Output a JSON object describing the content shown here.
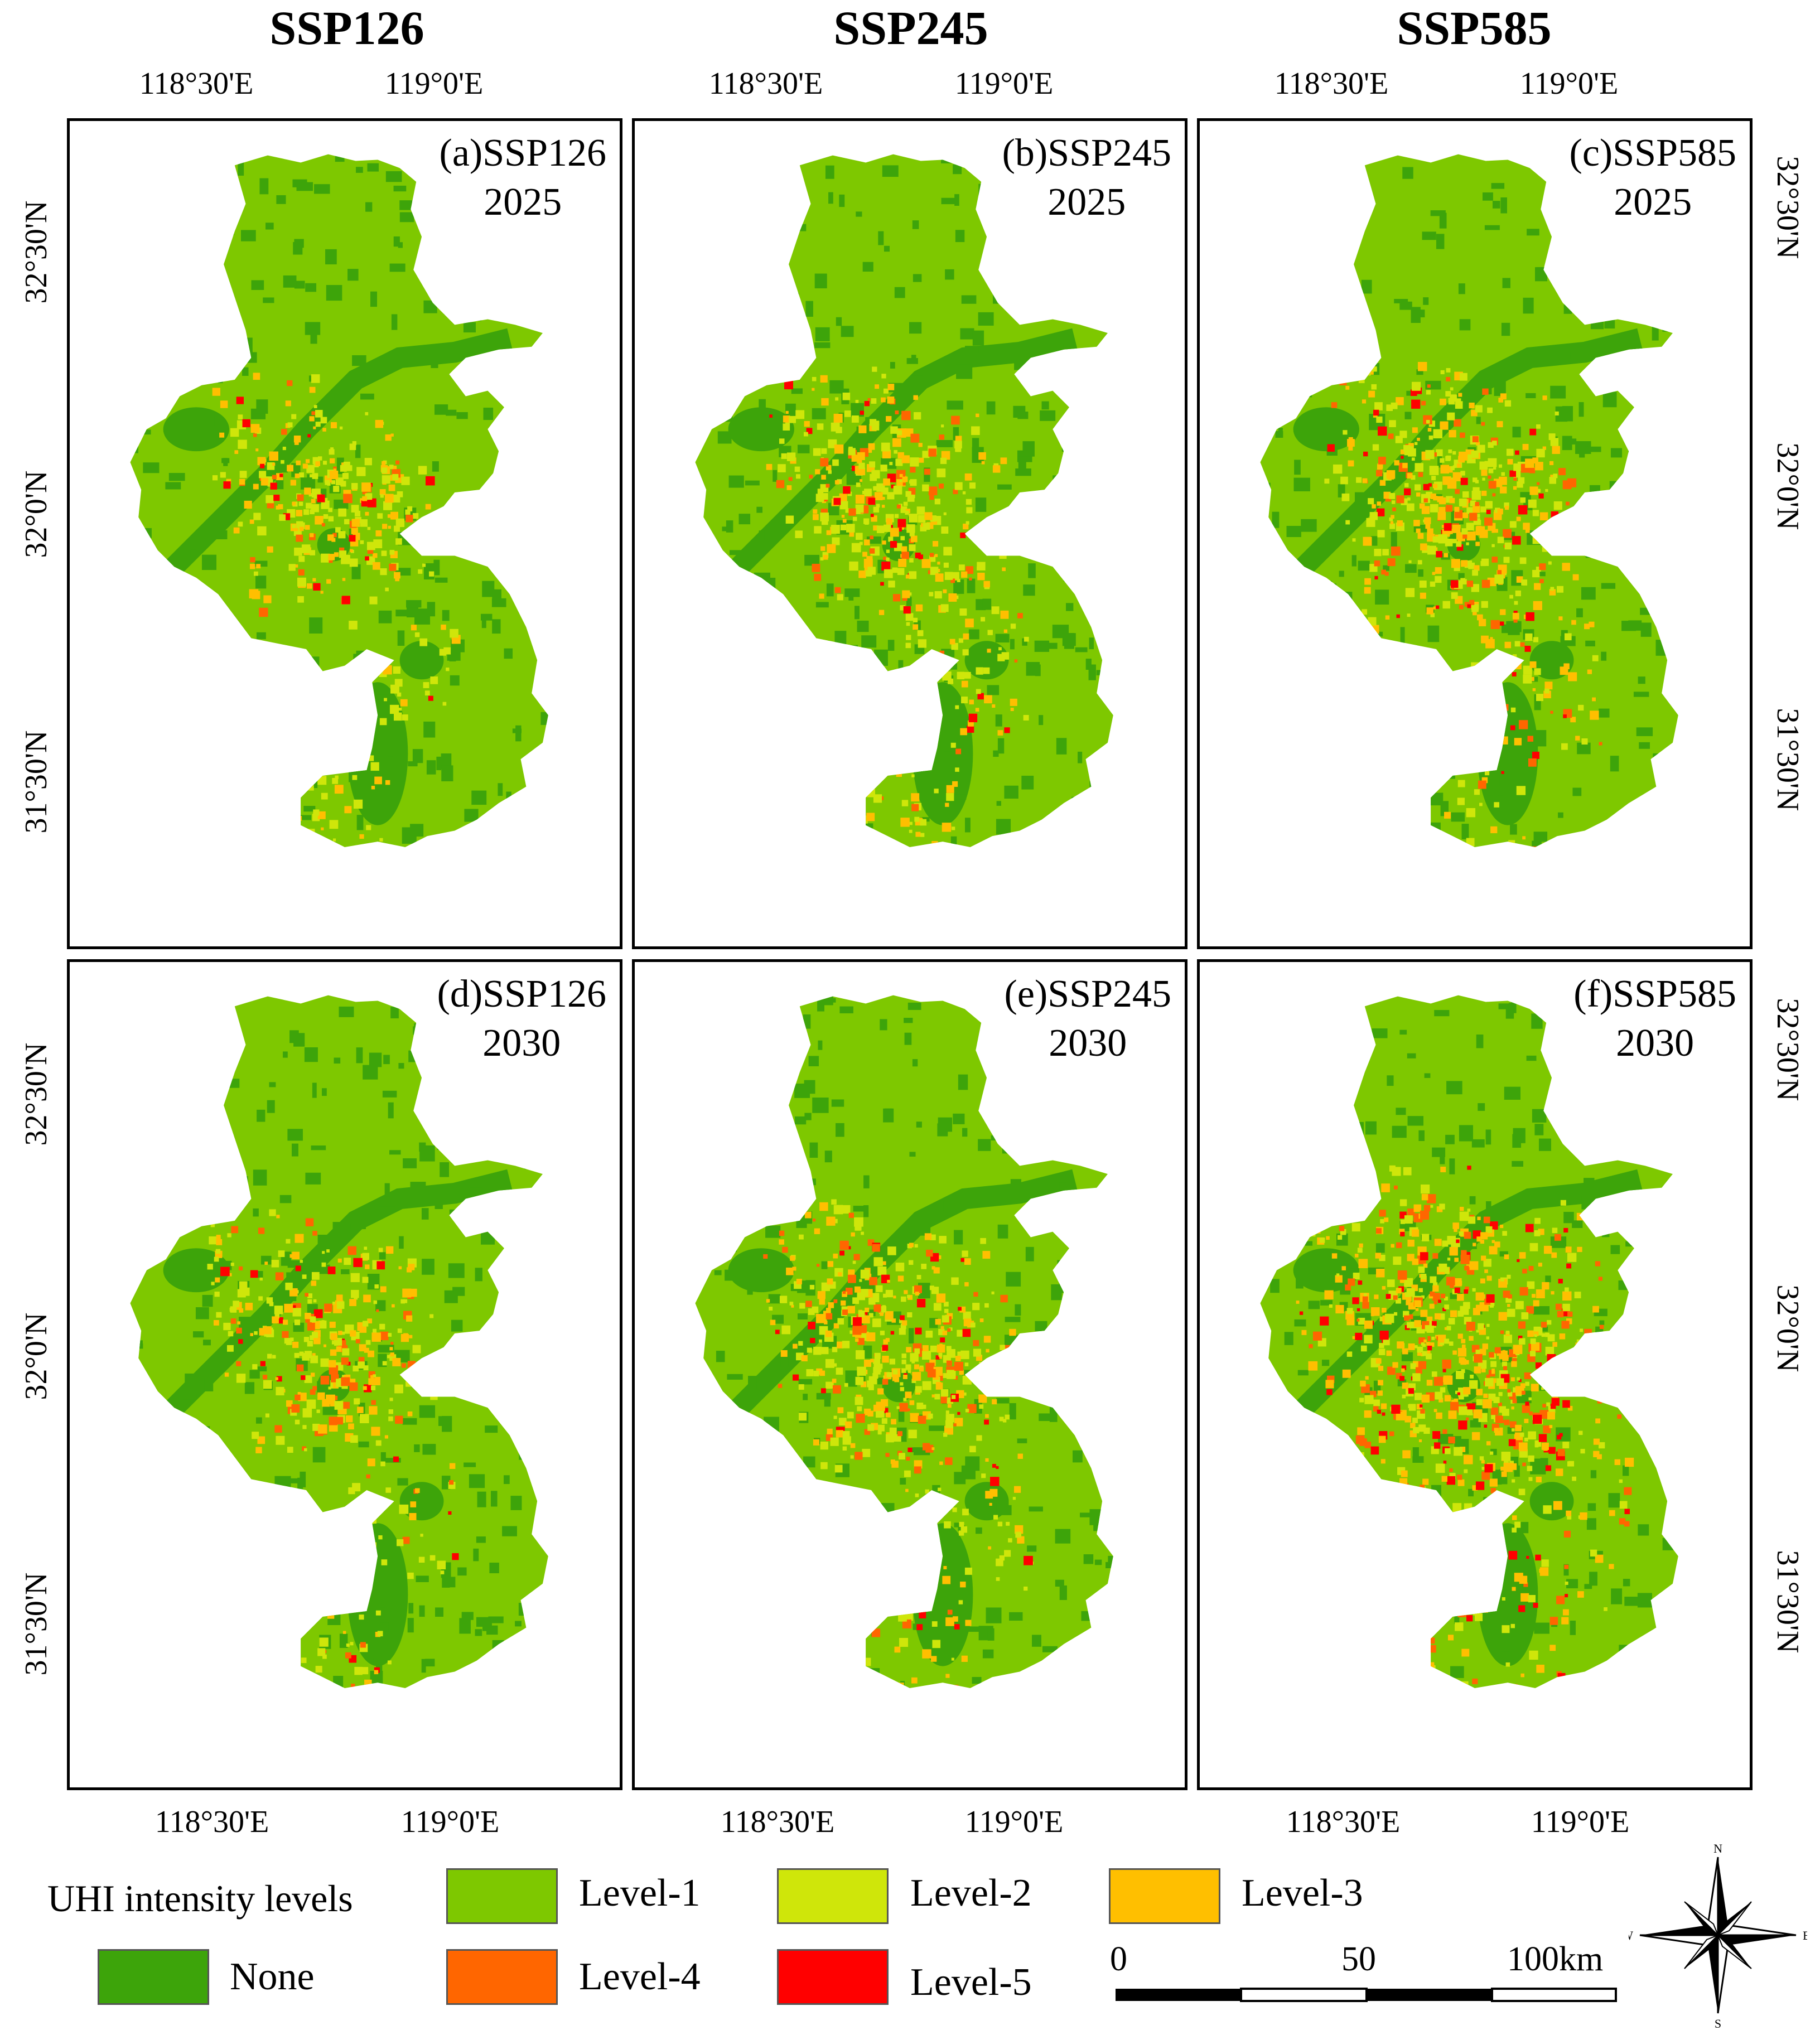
{
  "columns": [
    "SSP126",
    "SSP245",
    "SSP585"
  ],
  "top_lon_labels": [
    "118°30'E",
    "119°0'E"
  ],
  "bottom_lon_labels": [
    "118°30'E",
    "119°0'E"
  ],
  "lat_labels": [
    "32°30'N",
    "32°0'N",
    "31°30'N"
  ],
  "panels": [
    {
      "id": "a",
      "line1": "(a)SSP126",
      "line2": "2025",
      "intensity": 0.18
    },
    {
      "id": "b",
      "line1": "(b)SSP245",
      "line2": "2025",
      "intensity": 0.3
    },
    {
      "id": "c",
      "line1": "(c)SSP585",
      "line2": "2025",
      "intensity": 0.4
    },
    {
      "id": "d",
      "line1": "(d)SSP126",
      "line2": "2030",
      "intensity": 0.22
    },
    {
      "id": "e",
      "line1": "(e)SSP245",
      "line2": "2030",
      "intensity": 0.38
    },
    {
      "id": "f",
      "line1": "(f)SSP585",
      "line2": "2030",
      "intensity": 0.75
    }
  ],
  "legend": {
    "title": "UHI intensity levels",
    "items": [
      {
        "label": "Level-1",
        "color": "#7ec800"
      },
      {
        "label": "Level-2",
        "color": "#cfe60a"
      },
      {
        "label": "Level-3",
        "color": "#ffbf00"
      },
      {
        "label": "None",
        "color": "#3da40a"
      },
      {
        "label": "Level-4",
        "color": "#ff6600"
      },
      {
        "label": "Level-5",
        "color": "#ff0000"
      }
    ]
  },
  "scale_bar": {
    "labels": [
      "0",
      "50",
      "100km"
    ]
  },
  "north_arrow": {
    "icon": "compass-rose-icon",
    "n": "N",
    "s": "S",
    "e": "E",
    "w": "W"
  }
}
